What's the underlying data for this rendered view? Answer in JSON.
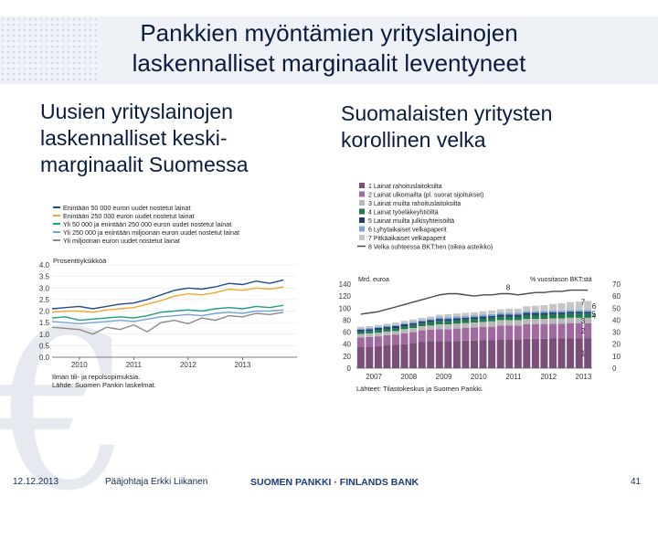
{
  "slide": {
    "title_line1": "Pankkien myöntämien yrityslainojen",
    "title_line2": "laskennalliset marginaalit leventyneet",
    "left_heading_1": "Uusien yrityslainojen",
    "left_heading_2": "laskennalliset keski-",
    "left_heading_3": "marginaalit Suomessa",
    "right_heading_1": "Suomalaisten yritysten",
    "right_heading_2": "korollinen velka"
  },
  "footer": {
    "date": "12.12.2013",
    "presenter": "Pääjohtaja Erkki Liikanen",
    "bank": "SUOMEN PANKKI · FINLANDS BANK",
    "page": "41"
  },
  "colors": {
    "title_text": "#0b1b40",
    "series1": "#1f4e8c",
    "series2": "#f0a830",
    "series3": "#1e9e82",
    "series4": "#6fa3d9",
    "series5": "#8a8a8a",
    "stack": [
      "#7b4f7a",
      "#a06aa0",
      "#b8b8b8",
      "#1f7a4c",
      "#243c7c",
      "#7aa7d6",
      "#c6c6c6",
      "#d9d9d9"
    ],
    "debt_line": "#4a4a4a"
  },
  "chart_data": [
    {
      "type": "line",
      "legend": [
        "Enintään 50 000 euron uudet nostetut lainat",
        "Enintään 250 000 euron uudet nostetut lainat",
        "Yli 50 000 ja enintään 250 000 euron uudet nostetut lainat",
        "Yli 250 000 ja enintään miljoonan euron uudet nostetut lainat",
        "Yli miljoonan euron uudet nostetut lainat"
      ],
      "ylabel": "Prosenttiyksikköä",
      "y_ticks": [
        "4.0",
        "3.5",
        "3.0",
        "2.5",
        "2.0",
        "1.5",
        "1.0",
        "0.5",
        "0.0"
      ],
      "ylim": [
        0,
        4.0
      ],
      "x_ticks": [
        "2010",
        "2011",
        "2012",
        "2013"
      ],
      "x": [
        2009.5,
        2009.75,
        2010.0,
        2010.25,
        2010.5,
        2010.75,
        2011.0,
        2011.25,
        2011.5,
        2011.75,
        2012.0,
        2012.25,
        2012.5,
        2012.75,
        2013.0,
        2013.25,
        2013.5,
        2013.75
      ],
      "series": [
        {
          "name": "Enintään 50 000 euron uudet nostetut lainat",
          "values": [
            2.1,
            2.15,
            2.2,
            2.1,
            2.2,
            2.3,
            2.35,
            2.5,
            2.7,
            2.9,
            3.0,
            2.95,
            3.05,
            3.2,
            3.15,
            3.3,
            3.2,
            3.35
          ]
        },
        {
          "name": "Enintään 250 000 euron uudet nostetut lainat",
          "values": [
            1.95,
            2.0,
            2.0,
            1.95,
            2.05,
            2.1,
            2.15,
            2.3,
            2.45,
            2.65,
            2.75,
            2.7,
            2.8,
            2.95,
            2.9,
            3.0,
            2.95,
            3.05
          ]
        },
        {
          "name": "Yli 50 000 ja enintään 250 000 euron uudet nostetut lainat",
          "values": [
            1.7,
            1.75,
            1.6,
            1.65,
            1.7,
            1.75,
            1.7,
            1.8,
            1.95,
            2.0,
            2.05,
            2.0,
            2.1,
            2.15,
            2.1,
            2.2,
            2.15,
            2.25
          ]
        },
        {
          "name": "Yli 250 000 ja enintään miljoonan euron uudet nostetut lainat",
          "values": [
            1.55,
            1.5,
            1.45,
            1.5,
            1.55,
            1.6,
            1.55,
            1.65,
            1.75,
            1.8,
            1.85,
            1.8,
            1.9,
            1.95,
            1.9,
            2.0,
            2.0,
            2.05
          ]
        },
        {
          "name": "Yli miljoonan euron uudet nostetut lainat",
          "values": [
            1.3,
            1.25,
            1.2,
            1.0,
            1.3,
            1.2,
            1.4,
            1.1,
            1.5,
            1.6,
            1.45,
            1.7,
            1.6,
            1.8,
            1.75,
            1.9,
            1.85,
            1.95
          ]
        }
      ],
      "notes": [
        "Ilman tili- ja repolsopimuksia.",
        "Lähde: Suomen Pankin laskelmat."
      ]
    },
    {
      "type": "bar",
      "stacked": true,
      "legend": [
        "1 Lainat rahoituslaitoksilta",
        "2 Lainat ulkomailta (pl. suorat sijoitukset)",
        "3 Lainat muilta rahoituslaitoksilta",
        "4 Lainat työeläkeyhtiöiltä",
        "5 Lainat muilta julkisyhteisöiltä",
        "6 Lyhytaikaiset velkapaperit",
        "7 Pitkäaikaiset velkapaperit",
        "8 Velka suhteessa BKT:hen (oikea asteikko)"
      ],
      "ylabel_left": "Mrd. euroa",
      "ylabel_right": "% vuositason BKT:stä",
      "y_ticks_left": [
        "140",
        "120",
        "100",
        "80",
        "60",
        "40",
        "20",
        "0"
      ],
      "y_ticks_right": [
        "70",
        "60",
        "50",
        "40",
        "30",
        "20",
        "10",
        "0"
      ],
      "ylim": [
        0,
        140
      ],
      "ylim_right": [
        0,
        70
      ],
      "x_ticks": [
        "2007",
        "2008",
        "2009",
        "2010",
        "2011",
        "2012",
        "2013"
      ],
      "segment_labels": [
        "1",
        "2",
        "3",
        "4",
        "5",
        "6",
        "7",
        "8"
      ],
      "stack_values": [
        [
          35,
          16,
          6,
          4,
          3,
          2,
          3
        ],
        [
          36,
          16,
          6,
          4,
          3,
          2,
          3
        ],
        [
          37,
          16,
          6,
          5,
          3,
          2,
          3
        ],
        [
          38,
          17,
          6,
          5,
          3,
          2,
          3
        ],
        [
          39,
          17,
          6,
          5,
          3,
          2,
          4
        ],
        [
          40,
          18,
          7,
          5,
          3,
          2,
          4
        ],
        [
          42,
          18,
          7,
          5,
          3,
          2,
          4
        ],
        [
          44,
          19,
          7,
          5,
          3,
          2,
          4
        ],
        [
          45,
          19,
          7,
          6,
          3,
          2,
          4
        ],
        [
          45,
          20,
          8,
          6,
          3,
          3,
          4
        ],
        [
          45,
          20,
          8,
          6,
          3,
          3,
          5
        ],
        [
          45,
          21,
          8,
          6,
          3,
          3,
          5
        ],
        [
          46,
          21,
          8,
          6,
          3,
          3,
          5
        ],
        [
          46,
          22,
          8,
          6,
          3,
          3,
          5
        ],
        [
          47,
          22,
          8,
          6,
          3,
          3,
          6
        ],
        [
          47,
          22,
          9,
          6,
          3,
          3,
          6
        ],
        [
          48,
          23,
          9,
          6,
          3,
          3,
          6
        ],
        [
          48,
          23,
          9,
          6,
          3,
          3,
          7
        ],
        [
          48,
          23,
          9,
          6,
          3,
          3,
          7
        ],
        [
          49,
          24,
          9,
          7,
          3,
          3,
          8
        ],
        [
          49,
          24,
          9,
          7,
          3,
          3,
          9
        ],
        [
          49,
          24,
          9,
          7,
          3,
          3,
          10
        ],
        [
          50,
          24,
          9,
          7,
          3,
          3,
          11
        ],
        [
          50,
          24,
          9,
          7,
          3,
          3,
          12
        ],
        [
          50,
          25,
          9,
          7,
          3,
          3,
          13
        ],
        [
          50,
          25,
          9,
          7,
          3,
          3,
          14
        ],
        [
          50,
          25,
          9,
          7,
          3,
          3,
          15
        ]
      ],
      "debt_to_gdp": [
        45,
        46,
        47,
        49,
        51,
        53,
        55,
        57,
        59,
        61,
        62,
        62,
        61,
        60,
        61,
        61,
        62,
        62,
        61,
        62,
        63,
        63,
        64,
        64,
        65,
        65,
        65
      ],
      "notes": [
        "Lähteet: Tilastokeskus ja Suomen Pankki."
      ]
    }
  ]
}
